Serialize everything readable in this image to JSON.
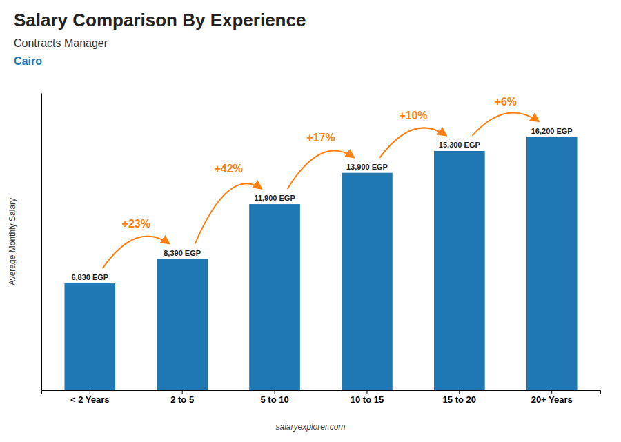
{
  "chart_data": {
    "type": "bar",
    "title": "Salary Comparison By Experience",
    "subtitle": "Contracts Manager",
    "city": "Cairo",
    "ylabel": "Average Monthly Salary",
    "footer": "salaryexplorer.com",
    "categories": [
      "< 2 Years",
      "2 to 5",
      "5 to 10",
      "10 to 15",
      "15 to 20",
      "20+ Years"
    ],
    "values": [
      6830,
      8390,
      11900,
      13900,
      15300,
      16200
    ],
    "value_labels": [
      "6,830 EGP",
      "8,390 EGP",
      "11,900 EGP",
      "13,900 EGP",
      "15,300 EGP",
      "16,200 EGP"
    ],
    "data_labels": true,
    "annotations": [
      "+23%",
      "+42%",
      "+17%",
      "+10%",
      "+6%"
    ],
    "ylim": [
      0,
      19000
    ],
    "yticks": [],
    "tick_labels": "x",
    "grid": false
  }
}
